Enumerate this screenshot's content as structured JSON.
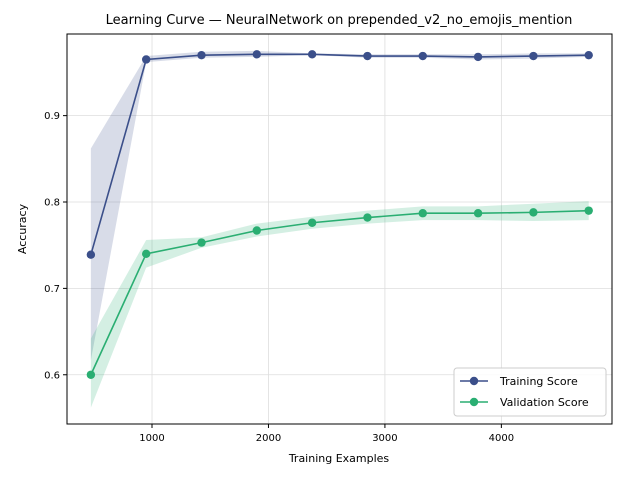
{
  "chart_data": {
    "type": "line",
    "title": "Learning Curve — NeuralNetwork on prepended_v2_no_emojis_mention",
    "xlabel": "Training Examples",
    "ylabel": "Accuracy",
    "xlim": [
      270,
      4950
    ],
    "ylim": [
      0.543,
      0.9945
    ],
    "xticks": [
      1000,
      2000,
      3000,
      4000
    ],
    "yticks": [
      0.6,
      0.7,
      0.8,
      0.9
    ],
    "grid": true,
    "legend_position": "lower-right",
    "x": [
      475,
      950,
      1425,
      1900,
      2375,
      2850,
      3325,
      3800,
      4275,
      4750
    ],
    "series": [
      {
        "name": "Training Score",
        "color": "#3b4f8a",
        "values": [
          0.739,
          0.965,
          0.97,
          0.971,
          0.971,
          0.969,
          0.969,
          0.968,
          0.969,
          0.97
        ],
        "band_low": [
          0.617,
          0.962,
          0.967,
          0.968,
          0.97,
          0.967,
          0.967,
          0.965,
          0.966,
          0.968
        ],
        "band_high": [
          0.862,
          0.969,
          0.974,
          0.975,
          0.972,
          0.971,
          0.971,
          0.971,
          0.972,
          0.972
        ]
      },
      {
        "name": "Validation Score",
        "color": "#2aae72",
        "values": [
          0.6,
          0.74,
          0.753,
          0.767,
          0.776,
          0.782,
          0.787,
          0.787,
          0.788,
          0.79
        ],
        "band_low": [
          0.562,
          0.724,
          0.747,
          0.76,
          0.769,
          0.775,
          0.779,
          0.779,
          0.778,
          0.779
        ],
        "band_high": [
          0.642,
          0.756,
          0.759,
          0.775,
          0.783,
          0.79,
          0.795,
          0.795,
          0.798,
          0.801
        ]
      }
    ]
  }
}
